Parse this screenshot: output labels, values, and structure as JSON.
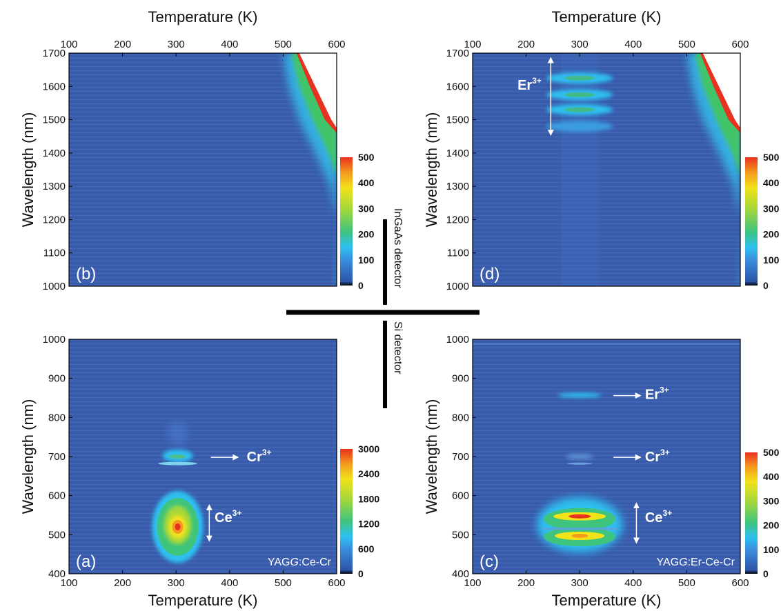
{
  "colors": {
    "background": "#3a5dad",
    "colormap": [
      "#000000",
      "#2c55a8",
      "#3a8ee0",
      "#2ec0f0",
      "#3ec47c",
      "#a6d83a",
      "#f2e21a",
      "#f49a1e",
      "#e8311e"
    ],
    "annotation": "#ffffff",
    "divider": "#000000"
  },
  "detectors": {
    "top": "InGaAs detector",
    "bottom": "Si detector"
  },
  "chart_data": [
    {
      "id": "b",
      "type": "heatmap",
      "panel_label": "(b)",
      "xlabel": "Temperature (K)",
      "xlabel_position": "top",
      "ylabel": "Wavelength (nm)",
      "xlim": [
        100,
        600
      ],
      "ylim": [
        1000,
        1700
      ],
      "xticks": [
        "100",
        "200",
        "300",
        "400",
        "500",
        "600"
      ],
      "yticks": [
        "1000",
        "1100",
        "1200",
        "1300",
        "1400",
        "1500",
        "1600",
        "1700"
      ],
      "colorbar": {
        "range": [
          0,
          500
        ],
        "ticks": [
          "0",
          "100",
          "200",
          "300",
          "400",
          "500"
        ]
      },
      "sample": "",
      "features": [
        {
          "name": "background",
          "x_start": 500,
          "x_end": 600,
          "description_level": "rising thermal emission at long wavelength"
        }
      ],
      "annotations": []
    },
    {
      "id": "d",
      "type": "heatmap",
      "panel_label": "(d)",
      "xlabel": "Temperature (K)",
      "xlabel_position": "top",
      "ylabel": "Wavelength (nm)",
      "xlim": [
        100,
        600
      ],
      "ylim": [
        1000,
        1700
      ],
      "xticks": [
        "100",
        "200",
        "300",
        "400",
        "500",
        "600"
      ],
      "yticks": [
        "1000",
        "1100",
        "1200",
        "1300",
        "1400",
        "1500",
        "1600",
        "1700"
      ],
      "colorbar": {
        "range": [
          0,
          500
        ],
        "ticks": [
          "0",
          "100",
          "200",
          "300",
          "400",
          "500"
        ]
      },
      "sample": "",
      "bands": [
        {
          "x": 300,
          "y": 1625
        },
        {
          "x": 300,
          "y": 1575
        },
        {
          "x": 300,
          "y": 1530
        },
        {
          "x": 300,
          "y": 1480
        }
      ],
      "annotations": [
        {
          "label": "Er",
          "sup": "3+",
          "x": 238,
          "y": 1605,
          "arrow": "vertical",
          "y_from": 1455,
          "y_to": 1685,
          "arrow_x": 246
        }
      ]
    },
    {
      "id": "a",
      "type": "heatmap",
      "panel_label": "(a)",
      "xlabel": "Temperature (K)",
      "xlabel_position": "bottom",
      "ylabel": "Wavelength (nm)",
      "xlim": [
        100,
        600
      ],
      "ylim": [
        400,
        1000
      ],
      "xticks": [
        "100",
        "200",
        "300",
        "400",
        "500",
        "600"
      ],
      "yticks": [
        "400",
        "500",
        "600",
        "700",
        "800",
        "900",
        "1000"
      ],
      "colorbar": {
        "range": [
          0,
          3000
        ],
        "ticks": [
          "0",
          "600",
          "1200",
          "1800",
          "2400",
          "3000"
        ]
      },
      "sample": "YAGG:Ce-Cr",
      "sample_parts": [
        "YAG",
        "G",
        ":Ce-Cr"
      ],
      "bands": [
        {
          "name": "Ce3+",
          "x": 303,
          "y": 520,
          "peak": 3000
        },
        {
          "name": "Cr3+",
          "x": 303,
          "y": 700,
          "peak": 800
        },
        {
          "name": "Cr3+",
          "x": 303,
          "y": 682,
          "peak": 600
        }
      ],
      "annotations": [
        {
          "label": "Ce",
          "sup": "3+",
          "x": 372,
          "y": 545,
          "arrow": "vertical",
          "y_from": 485,
          "y_to": 575,
          "arrow_x": 362
        },
        {
          "label": "Cr",
          "sup": "3+",
          "x": 432,
          "y": 700,
          "arrow": "horizontal",
          "x_from": 365,
          "x_to": 415,
          "arrow_y": 698
        }
      ]
    },
    {
      "id": "c",
      "type": "heatmap",
      "panel_label": "(c)",
      "xlabel": "Temperature (K)",
      "xlabel_position": "bottom",
      "ylabel": "Wavelength (nm)",
      "xlim": [
        100,
        600
      ],
      "ylim": [
        400,
        1000
      ],
      "xticks": [
        "100",
        "200",
        "300",
        "400",
        "500",
        "600"
      ],
      "yticks": [
        "400",
        "500",
        "600",
        "700",
        "800",
        "900",
        "1000"
      ],
      "colorbar": {
        "range": [
          0,
          500
        ],
        "ticks": [
          "0",
          "100",
          "200",
          "300",
          "400",
          "500"
        ]
      },
      "sample": "YAGG:Er-Ce-Cr",
      "sample_parts": [
        "YAG",
        "G",
        ":Er-Ce-Cr"
      ],
      "bands": [
        {
          "name": "Ce3+",
          "x": 300,
          "y": 547,
          "peak": 500
        },
        {
          "name": "Ce3+",
          "x": 300,
          "y": 497,
          "peak": 480
        },
        {
          "name": "Cr3+",
          "x": 300,
          "y": 700,
          "peak": 120
        },
        {
          "name": "Er3+",
          "x": 300,
          "y": 857,
          "peak": 180
        }
      ],
      "annotations": [
        {
          "label": "Ce",
          "sup": "3+",
          "x": 422,
          "y": 545,
          "arrow": "vertical",
          "y_from": 480,
          "y_to": 580,
          "arrow_x": 406
        },
        {
          "label": "Cr",
          "sup": "3+",
          "x": 422,
          "y": 700,
          "arrow": "horizontal",
          "x_from": 363,
          "x_to": 413,
          "arrow_y": 698
        },
        {
          "label": "Er",
          "sup": "3+",
          "x": 422,
          "y": 860,
          "arrow": "horizontal",
          "x_from": 363,
          "x_to": 413,
          "arrow_y": 856
        }
      ]
    }
  ]
}
